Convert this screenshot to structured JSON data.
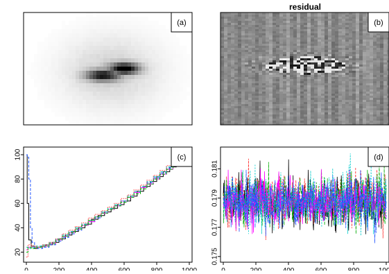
{
  "chart_data": [
    {
      "type": "heatmap",
      "panel_label": "(a)",
      "title": "",
      "colormap": "white-to-black",
      "description_values": {
        "blob_center": [
          0.52,
          0.53
        ],
        "blob_extent": [
          0.46,
          0.16
        ],
        "core_intensity": 0.95
      }
    },
    {
      "type": "heatmap",
      "panel_label": "(b)",
      "title": "residual",
      "colormap": "grey-noise",
      "description_values": {
        "background_level": 0.55,
        "feature_center": [
          0.5,
          0.46
        ]
      }
    },
    {
      "type": "line",
      "panel_label": "(c)",
      "xlim": [
        0,
        1000
      ],
      "ylim": [
        14,
        104
      ],
      "x_ticks": [
        "0",
        "200",
        "400",
        "600",
        "800",
        "1000"
      ],
      "y_ticks": [
        "20",
        "40",
        "60",
        "80",
        "100"
      ],
      "series": [
        {
          "color": "#000000",
          "style": "solid",
          "x": [
            0,
            10,
            20,
            40,
            60,
            80,
            100,
            140,
            180,
            220,
            260,
            300,
            340,
            380,
            420,
            460,
            500,
            540,
            580,
            620,
            660,
            700,
            740,
            780,
            820,
            860,
            900,
            940,
            1000
          ],
          "values": [
            100,
            60,
            30,
            25,
            23,
            24,
            25,
            26,
            28,
            31,
            34,
            37,
            40,
            43,
            47,
            50,
            53,
            56,
            59,
            62,
            66,
            70,
            74,
            78,
            82,
            86,
            90,
            92,
            92
          ]
        },
        {
          "color": "#2255ff",
          "style": "dashed",
          "x": [
            0,
            10,
            20,
            30,
            40,
            60,
            80,
            120,
            160,
            200,
            240,
            280,
            320,
            360,
            400,
            440,
            480,
            520,
            560,
            600,
            640,
            680,
            720,
            760,
            800,
            840,
            880,
            920,
            1000
          ],
          "values": [
            100,
            98,
            80,
            40,
            28,
            24,
            23,
            24,
            26,
            29,
            32,
            35,
            38,
            42,
            45,
            48,
            52,
            55,
            58,
            61,
            65,
            69,
            73,
            77,
            81,
            85,
            89,
            92,
            92
          ]
        },
        {
          "color": "#ff00ff",
          "style": "solid",
          "x": [
            0,
            20,
            40,
            80,
            120,
            160,
            200,
            240,
            280,
            320,
            360,
            400,
            440,
            480,
            520,
            560,
            600,
            640,
            680,
            720,
            760,
            800,
            840,
            880,
            920,
            1000
          ],
          "values": [
            22,
            24,
            24,
            24,
            25,
            27,
            30,
            33,
            36,
            39,
            42,
            45,
            49,
            52,
            55,
            58,
            62,
            65,
            69,
            73,
            76,
            80,
            84,
            88,
            92,
            92
          ]
        },
        {
          "color": "#00cccc",
          "style": "dashed",
          "x": [
            0,
            20,
            40,
            80,
            120,
            160,
            200,
            240,
            280,
            320,
            360,
            400,
            440,
            480,
            520,
            560,
            600,
            640,
            680,
            720,
            760,
            800,
            840,
            880,
            920,
            1000
          ],
          "values": [
            24,
            23,
            24,
            25,
            26,
            28,
            31,
            34,
            37,
            40,
            43,
            46,
            49,
            53,
            56,
            59,
            62,
            66,
            70,
            74,
            78,
            82,
            86,
            90,
            92,
            92
          ]
        },
        {
          "color": "#ff3333",
          "style": "dotted",
          "x": [
            0,
            20,
            40,
            80,
            120,
            160,
            200,
            240,
            280,
            320,
            360,
            400,
            440,
            480,
            520,
            560,
            600,
            640,
            680,
            720,
            760,
            800,
            840,
            880,
            920,
            1000
          ],
          "values": [
            16,
            26,
            25,
            24,
            26,
            28,
            31,
            35,
            38,
            41,
            44,
            48,
            51,
            54,
            57,
            60,
            64,
            67,
            71,
            75,
            79,
            83,
            87,
            91,
            93,
            93
          ]
        },
        {
          "color": "#00aa00",
          "style": "dashed",
          "x": [
            0,
            20,
            40,
            80,
            120,
            160,
            200,
            240,
            280,
            320,
            360,
            400,
            440,
            480,
            520,
            560,
            600,
            640,
            680,
            720,
            760,
            800,
            840,
            880,
            920,
            1000
          ],
          "values": [
            20,
            24,
            23,
            24,
            25,
            27,
            30,
            33,
            36,
            39,
            42,
            46,
            49,
            52,
            55,
            58,
            61,
            65,
            68,
            72,
            76,
            80,
            84,
            88,
            92,
            92
          ]
        }
      ]
    },
    {
      "type": "line",
      "panel_label": "(d)",
      "xlim": [
        0,
        1000
      ],
      "ylim": [
        0.1748,
        0.1823
      ],
      "x_ticks": [
        "0",
        "200",
        "400",
        "600",
        "800",
        "1000"
      ],
      "y_ticks": [
        "0.175",
        "0.177",
        "0.179",
        "0.181"
      ],
      "noise_mean": 0.1788,
      "noise_sd": 0.00085,
      "n_points": 1000,
      "series_colors": [
        "#000000",
        "#ff3333",
        "#00aa00",
        "#ff00ff",
        "#00cccc",
        "#2255ff"
      ]
    }
  ]
}
